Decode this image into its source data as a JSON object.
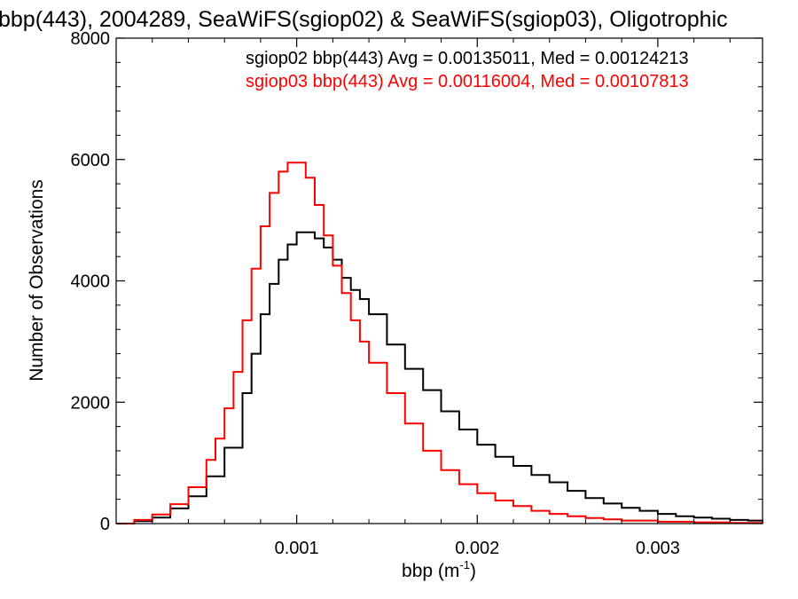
{
  "chart_data": {
    "type": "line",
    "title": "bbp(443), 2004289, SeaWiFS(sgiop02) & SeaWiFS(sgiop03), Oligotrophic",
    "xlabel": "bbp (m",
    "xlabel_exp": "-1",
    "xlabel_close": ")",
    "ylabel": "Number of Observations",
    "xlim": [
      0.0,
      0.00358
    ],
    "ylim": [
      0,
      8000
    ],
    "x_ticks": [
      0.001,
      0.002,
      0.003
    ],
    "x_tick_labels": [
      "0.001",
      "0.002",
      "0.003"
    ],
    "y_ticks": [
      0,
      2000,
      4000,
      6000,
      8000
    ],
    "y_tick_labels": [
      "0",
      "2000",
      "4000",
      "6000",
      "8000"
    ],
    "grid": false,
    "legend_position": "top-right",
    "annotations": [
      {
        "text": "sgiop02 bbp(443) Avg = 0.00135011, Med = 0.00124213",
        "color": "#000000"
      },
      {
        "text": "sgiop03 bbp(443) Avg = 0.00116004, Med = 0.00107813",
        "color": "#ff0000"
      }
    ],
    "series": [
      {
        "color": "#000000",
        "x": [
          0.0,
          0.0001,
          0.0002,
          0.0003,
          0.0004,
          0.0005,
          0.0006,
          0.0007,
          0.00075,
          0.0008,
          0.00085,
          0.0009,
          0.00095,
          0.001,
          0.00105,
          0.0011,
          0.00115,
          0.0012,
          0.00125,
          0.0013,
          0.00135,
          0.0014,
          0.0015,
          0.0016,
          0.0017,
          0.0018,
          0.0019,
          0.002,
          0.0021,
          0.0022,
          0.0023,
          0.0024,
          0.0025,
          0.0026,
          0.0027,
          0.0028,
          0.0029,
          0.003,
          0.0031,
          0.0032,
          0.0033,
          0.0034,
          0.0035,
          0.00358
        ],
        "y": [
          0,
          40,
          100,
          250,
          450,
          780,
          1250,
          2150,
          2800,
          3450,
          3950,
          4350,
          4600,
          4800,
          4800,
          4700,
          4550,
          4350,
          4050,
          3850,
          3700,
          3450,
          2950,
          2550,
          2200,
          1850,
          1550,
          1300,
          1100,
          950,
          800,
          680,
          540,
          420,
          330,
          260,
          210,
          160,
          120,
          100,
          80,
          60,
          50,
          40
        ]
      },
      {
        "color": "#ff0000",
        "x": [
          0.0,
          0.0001,
          0.0002,
          0.0003,
          0.0004,
          0.0005,
          0.00055,
          0.0006,
          0.00065,
          0.0007,
          0.00075,
          0.0008,
          0.00085,
          0.0009,
          0.00095,
          0.001,
          0.00105,
          0.0011,
          0.00115,
          0.0012,
          0.00125,
          0.0013,
          0.00135,
          0.0014,
          0.0015,
          0.0016,
          0.0017,
          0.0018,
          0.0019,
          0.002,
          0.0021,
          0.0022,
          0.0023,
          0.0024,
          0.0025,
          0.0026,
          0.0027,
          0.0028,
          0.003,
          0.0032,
          0.0034,
          0.00358
        ],
        "y": [
          0,
          60,
          150,
          320,
          600,
          1050,
          1400,
          1900,
          2500,
          3350,
          4200,
          4900,
          5450,
          5800,
          5950,
          5950,
          5700,
          5250,
          4750,
          4250,
          3800,
          3350,
          3000,
          2650,
          2150,
          1650,
          1200,
          880,
          650,
          500,
          380,
          290,
          210,
          160,
          120,
          90,
          70,
          50,
          30,
          20,
          10,
          5
        ]
      }
    ]
  }
}
